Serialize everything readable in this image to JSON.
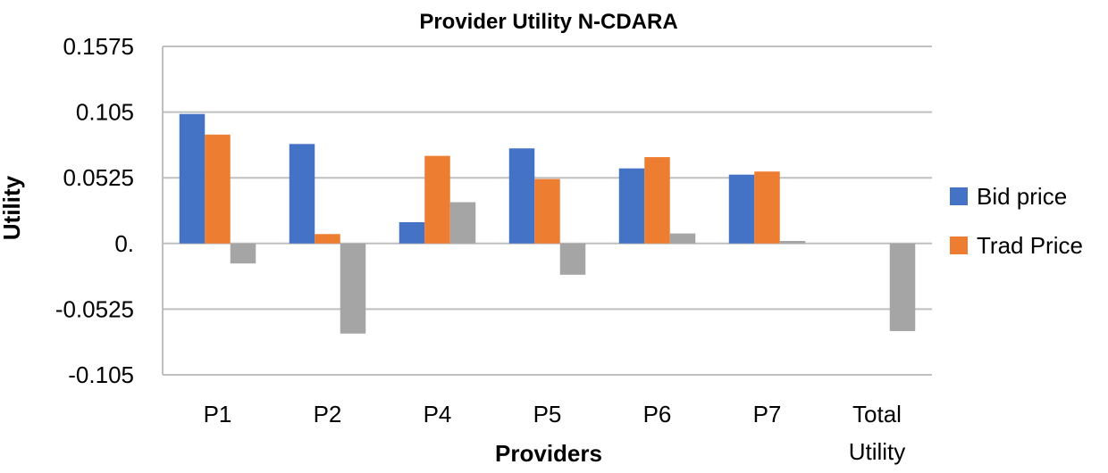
{
  "chart_data": {
    "type": "bar",
    "title": "Provider Utility N-CDARA",
    "xlabel": "Providers",
    "ylabel": "Utility",
    "categories": [
      "P1",
      "P2",
      "P4",
      "P5",
      "P6",
      "P7",
      "Total Utility"
    ],
    "yticks": [
      "0.1575",
      "0.105",
      "0.0525",
      "0.",
      "-0.0525",
      "-0.105"
    ],
    "ylim": [
      -0.105,
      0.1575
    ],
    "grid": true,
    "legend_position": "right",
    "series": [
      {
        "name": "Bid price",
        "color": "#4472C4",
        "values": [
          0.1035,
          0.0795,
          0.017,
          0.076,
          0.06,
          0.055,
          0
        ]
      },
      {
        "name": "Trad Price",
        "color": "#ED7D31",
        "values": [
          0.087,
          0.0075,
          0.07,
          0.0515,
          0.069,
          0.0575,
          0
        ]
      },
      {
        "name": "",
        "color": "#A5A5A5",
        "values": [
          -0.016,
          -0.072,
          0.033,
          -0.025,
          0.008,
          0.002,
          -0.07
        ]
      }
    ],
    "legend": [
      "Bid price",
      "Trad Price"
    ]
  }
}
